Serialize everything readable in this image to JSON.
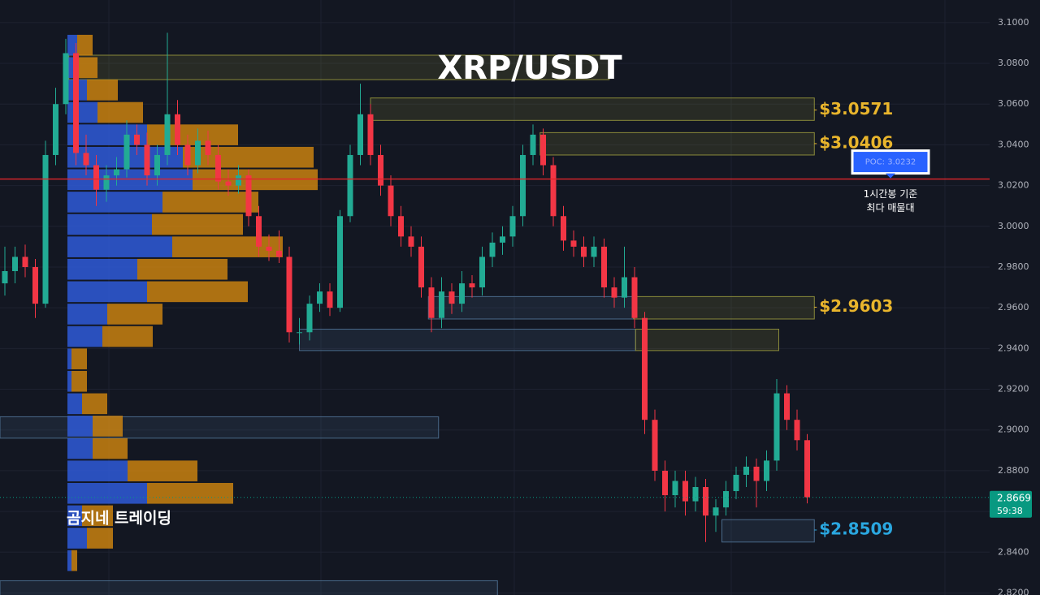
{
  "chart_data": {
    "type": "candlestick",
    "title": "XRP/USDT",
    "watermark": "곰지네 트레이딩",
    "up_color": "#22ab94",
    "down_color": "#f23645",
    "ylim": [
      2.819,
      3.1111
    ],
    "yticks": [
      {
        "value": 3.1,
        "label": "3.1000"
      },
      {
        "value": 3.08,
        "label": "3.0800"
      },
      {
        "value": 3.06,
        "label": "3.0600"
      },
      {
        "value": 3.04,
        "label": "3.0400"
      },
      {
        "value": 3.02,
        "label": "3.0200"
      },
      {
        "value": 3.0,
        "label": "3.0000"
      },
      {
        "value": 2.98,
        "label": "2.9800"
      },
      {
        "value": 2.96,
        "label": "2.9600"
      },
      {
        "value": 2.94,
        "label": "2.9400"
      },
      {
        "value": 2.92,
        "label": "2.9200"
      },
      {
        "value": 2.9,
        "label": "2.9000"
      },
      {
        "value": 2.88,
        "label": "2.8800"
      },
      {
        "value": 2.86,
        "label": "2.8600"
      },
      {
        "value": 2.84,
        "label": "2.8400"
      },
      {
        "value": 2.82,
        "label": "2.8200"
      }
    ],
    "grid": true,
    "candles": [
      [
        2.972,
        2.99,
        2.966,
        2.978
      ],
      [
        2.978,
        2.99,
        2.972,
        2.985
      ],
      [
        2.985,
        2.991,
        2.975,
        2.98
      ],
      [
        2.98,
        2.984,
        2.955,
        2.962
      ],
      [
        2.962,
        3.042,
        2.96,
        3.035
      ],
      [
        3.035,
        3.068,
        3.03,
        3.06
      ],
      [
        3.06,
        3.092,
        3.055,
        3.085
      ],
      [
        3.085,
        3.09,
        3.03,
        3.036
      ],
      [
        3.036,
        3.045,
        3.025,
        3.03
      ],
      [
        3.03,
        3.035,
        3.01,
        3.018
      ],
      [
        3.018,
        3.03,
        3.012,
        3.025
      ],
      [
        3.025,
        3.034,
        3.02,
        3.028
      ],
      [
        3.028,
        3.052,
        3.024,
        3.045
      ],
      [
        3.045,
        3.05,
        3.035,
        3.04
      ],
      [
        3.04,
        3.046,
        3.02,
        3.025
      ],
      [
        3.025,
        3.04,
        3.02,
        3.035
      ],
      [
        3.035,
        3.095,
        3.03,
        3.055
      ],
      [
        3.055,
        3.062,
        3.035,
        3.04
      ],
      [
        3.04,
        3.045,
        3.025,
        3.03
      ],
      [
        3.03,
        3.048,
        3.026,
        3.042
      ],
      [
        3.042,
        3.047,
        3.03,
        3.035
      ],
      [
        3.035,
        3.04,
        3.018,
        3.022
      ],
      [
        3.022,
        3.028,
        3.015,
        3.02
      ],
      [
        3.02,
        3.03,
        3.016,
        3.025
      ],
      [
        3.025,
        3.028,
        3.0,
        3.005
      ],
      [
        3.005,
        3.01,
        2.985,
        2.99
      ],
      [
        2.99,
        2.996,
        2.983,
        2.988
      ],
      [
        2.988,
        2.998,
        2.982,
        2.985
      ],
      [
        2.985,
        2.99,
        2.943,
        2.948
      ],
      [
        2.948,
        2.955,
        2.942,
        2.948
      ],
      [
        2.948,
        2.966,
        2.944,
        2.962
      ],
      [
        2.962,
        2.972,
        2.958,
        2.968
      ],
      [
        2.968,
        2.972,
        2.956,
        2.96
      ],
      [
        2.96,
        3.008,
        2.958,
        3.005
      ],
      [
        3.005,
        3.04,
        3.002,
        3.035
      ],
      [
        3.035,
        3.07,
        3.03,
        3.055
      ],
      [
        3.055,
        3.06,
        3.03,
        3.035
      ],
      [
        3.035,
        3.04,
        3.015,
        3.02
      ],
      [
        3.02,
        3.025,
        3.0,
        3.005
      ],
      [
        3.005,
        3.01,
        2.99,
        2.995
      ],
      [
        2.995,
        3.0,
        2.985,
        2.99
      ],
      [
        2.99,
        2.995,
        2.965,
        2.97
      ],
      [
        2.97,
        2.975,
        2.948,
        2.955
      ],
      [
        2.955,
        2.975,
        2.95,
        2.968
      ],
      [
        2.968,
        2.972,
        2.957,
        2.962
      ],
      [
        2.962,
        2.978,
        2.958,
        2.972
      ],
      [
        2.972,
        2.976,
        2.965,
        2.97
      ],
      [
        2.97,
        2.99,
        2.966,
        2.985
      ],
      [
        2.985,
        2.997,
        2.98,
        2.992
      ],
      [
        2.992,
        3.0,
        2.986,
        2.995
      ],
      [
        2.995,
        3.01,
        2.99,
        3.005
      ],
      [
        3.005,
        3.04,
        3.0,
        3.035
      ],
      [
        3.035,
        3.05,
        3.03,
        3.045
      ],
      [
        3.045,
        3.048,
        3.025,
        3.03
      ],
      [
        3.03,
        3.034,
        3.0,
        3.005
      ],
      [
        3.005,
        3.01,
        2.988,
        2.993
      ],
      [
        2.993,
        2.998,
        2.985,
        2.99
      ],
      [
        2.99,
        2.995,
        2.98,
        2.985
      ],
      [
        2.985,
        2.995,
        2.98,
        2.99
      ],
      [
        2.99,
        2.994,
        2.965,
        2.97
      ],
      [
        2.97,
        2.975,
        2.96,
        2.965
      ],
      [
        2.965,
        2.99,
        2.96,
        2.975
      ],
      [
        2.975,
        2.98,
        2.95,
        2.955
      ],
      [
        2.955,
        2.958,
        2.898,
        2.905
      ],
      [
        2.905,
        2.91,
        2.875,
        2.88
      ],
      [
        2.88,
        2.885,
        2.86,
        2.868
      ],
      [
        2.868,
        2.88,
        2.862,
        2.875
      ],
      [
        2.875,
        2.88,
        2.858,
        2.865
      ],
      [
        2.865,
        2.877,
        2.86,
        2.872
      ],
      [
        2.872,
        2.876,
        2.845,
        2.858
      ],
      [
        2.858,
        2.866,
        2.85,
        2.862
      ],
      [
        2.862,
        2.875,
        2.858,
        2.87
      ],
      [
        2.87,
        2.882,
        2.866,
        2.878
      ],
      [
        2.878,
        2.887,
        2.872,
        2.882
      ],
      [
        2.882,
        2.886,
        2.862,
        2.875
      ],
      [
        2.875,
        2.89,
        2.87,
        2.885
      ],
      [
        2.885,
        2.925,
        2.88,
        2.918
      ],
      [
        2.918,
        2.922,
        2.9,
        2.905
      ],
      [
        2.905,
        2.91,
        2.89,
        2.895
      ],
      [
        2.895,
        2.898,
        2.864,
        2.867
      ]
    ],
    "volume_profile": {
      "buy_color": "#2f5bd8",
      "sell_color": "#d4880f",
      "bins": [
        3.0944,
        3.0834,
        3.0724,
        3.0614,
        3.0504,
        3.0394,
        3.0284,
        3.0174,
        3.0064,
        2.9954,
        2.9844,
        2.9734,
        2.9624,
        2.9514,
        2.9404,
        2.9294,
        2.9184,
        2.9074,
        2.8964,
        2.8854,
        2.8744,
        2.8634,
        2.8524,
        2.8414,
        2.8304
      ],
      "buy": [
        12,
        12,
        24,
        37,
        98,
        142,
        154,
        117,
        104,
        129,
        86,
        98,
        49,
        43,
        5,
        5,
        18,
        31,
        31,
        74,
        98,
        18,
        24,
        5
      ],
      "sell": [
        19,
        25,
        38,
        56,
        112,
        161,
        154,
        118,
        112,
        136,
        111,
        124,
        68,
        62,
        19,
        19,
        31,
        37,
        43,
        86,
        106,
        38,
        32,
        7
      ]
    },
    "zones": [
      {
        "top": 3.084,
        "bottom": 3.072,
        "x": [
          6.3,
          59.5
        ],
        "color": "#8a8a3a"
      },
      {
        "top": 3.063,
        "bottom": 3.052,
        "x": [
          36,
          79.7
        ],
        "color": "#8a8a3a",
        "value": 3.0571,
        "label": "$3.0571",
        "label_color": "#e9b52c"
      },
      {
        "top": 3.046,
        "bottom": 3.035,
        "x": [
          52.7,
          79.7
        ],
        "color": "#8a8a3a",
        "value": 3.0406,
        "label": "$3.0406",
        "label_color": "#e9b52c"
      },
      {
        "top": 2.9655,
        "bottom": 2.9545,
        "x": [
          41.7,
          61.9
        ],
        "color": "#4a6a8a"
      },
      {
        "top": 2.9655,
        "bottom": 2.9545,
        "x": [
          61.9,
          79.7
        ],
        "color": "#8a8a3a",
        "value": 2.9603,
        "label": "$2.9603",
        "label_color": "#e9b52c"
      },
      {
        "top": 2.9495,
        "bottom": 2.939,
        "x": [
          29,
          62.1
        ],
        "color": "#4a6a8a"
      },
      {
        "top": 2.9495,
        "bottom": 2.939,
        "x": [
          62.1,
          76.2
        ],
        "color": "#8a8a3a"
      },
      {
        "top": 2.9065,
        "bottom": 2.896,
        "x": [
          -0.5,
          42.7
        ],
        "color": "#4a6a8a"
      },
      {
        "top": 2.856,
        "bottom": 2.845,
        "x": [
          70.6,
          79.7
        ],
        "color": "#4a6a8a",
        "value": 2.8509,
        "label": "$2.8509",
        "label_color": "#2aa7e0"
      },
      {
        "top": 2.826,
        "bottom": 2.815,
        "x": [
          -0.5,
          48.5
        ],
        "color": "#4a6a8a"
      }
    ],
    "poc": {
      "value": 3.0232,
      "label": "POC: 3.0232",
      "note": [
        "1시간봉 기준",
        "최다 매물대"
      ],
      "color": "#e0262b"
    },
    "last_price": {
      "value": 2.8669,
      "label": "2.8669",
      "countdown": "59:38",
      "color": "#089981"
    }
  }
}
